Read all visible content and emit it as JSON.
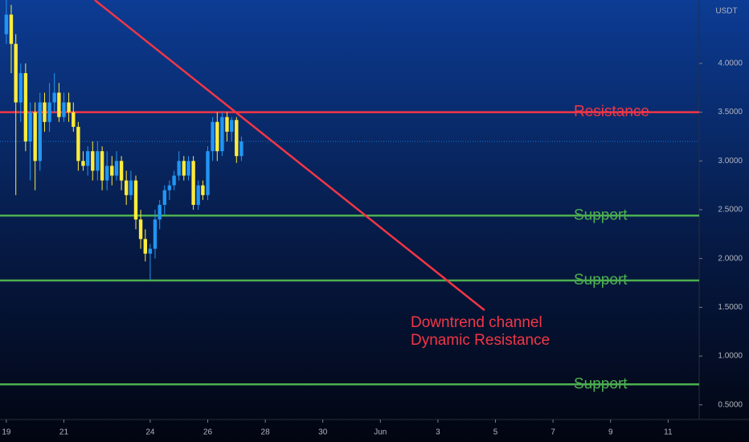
{
  "chart_data": {
    "type": "candlestick",
    "unit": "USDT",
    "x": [
      19,
      19.17,
      19.33,
      19.5,
      19.67,
      19.83,
      20,
      20.17,
      20.33,
      20.5,
      20.67,
      20.83,
      21,
      21.17,
      21.33,
      21.5,
      21.67,
      21.83,
      22,
      22.17,
      22.33,
      22.5,
      22.67,
      22.83,
      23,
      23.17,
      23.33,
      23.5,
      23.67,
      23.83,
      24,
      24.17,
      24.33,
      24.5,
      24.67,
      24.83,
      25,
      25.17,
      25.33,
      25.5,
      25.67,
      25.83,
      26,
      26.17,
      26.33,
      26.5,
      26.67,
      26.83,
      27,
      27.17
    ],
    "open": [
      4.3,
      4.5,
      4.2,
      3.6,
      3.9,
      3.2,
      3.5,
      3.0,
      3.6,
      3.4,
      3.6,
      3.7,
      3.45,
      3.6,
      3.5,
      3.35,
      3.0,
      2.95,
      3.1,
      2.9,
      3.1,
      2.8,
      2.95,
      2.85,
      3.0,
      2.8,
      2.65,
      2.8,
      2.4,
      2.2,
      2.05,
      2.1,
      2.4,
      2.55,
      2.7,
      2.75,
      2.85,
      3.0,
      2.85,
      3.0,
      2.55,
      2.75,
      2.65,
      3.1,
      3.4,
      3.1,
      3.45,
      3.3,
      3.42,
      3.05
    ],
    "high": [
      4.65,
      4.6,
      4.3,
      4.0,
      4.0,
      3.6,
      3.6,
      3.7,
      3.7,
      3.8,
      3.9,
      3.8,
      3.7,
      3.7,
      3.6,
      3.4,
      3.1,
      3.15,
      3.2,
      3.2,
      3.15,
      3.1,
      3.05,
      3.1,
      3.05,
      2.9,
      2.9,
      2.85,
      2.5,
      2.3,
      2.15,
      2.5,
      2.6,
      2.75,
      2.8,
      2.9,
      3.1,
      3.05,
      3.05,
      3.05,
      2.8,
      2.8,
      3.15,
      3.45,
      3.5,
      3.5,
      3.5,
      3.45,
      3.45,
      3.25
    ],
    "low": [
      4.2,
      3.9,
      2.65,
      3.4,
      3.1,
      2.8,
      2.7,
      2.9,
      3.3,
      3.3,
      3.5,
      3.4,
      3.4,
      3.4,
      3.3,
      2.9,
      2.9,
      2.85,
      2.8,
      2.8,
      2.7,
      2.7,
      2.75,
      2.8,
      2.7,
      2.55,
      2.6,
      2.3,
      2.1,
      1.97,
      1.78,
      2.0,
      2.3,
      2.45,
      2.6,
      2.7,
      2.8,
      2.8,
      2.8,
      2.5,
      2.5,
      2.6,
      2.6,
      3.0,
      3.0,
      3.05,
      3.2,
      3.2,
      2.98,
      3.0
    ],
    "close": [
      4.5,
      4.2,
      3.6,
      3.9,
      3.2,
      3.5,
      3.0,
      3.6,
      3.4,
      3.6,
      3.7,
      3.45,
      3.6,
      3.5,
      3.35,
      3.0,
      2.95,
      3.1,
      2.9,
      3.1,
      2.8,
      2.95,
      2.85,
      3.0,
      2.8,
      2.65,
      2.8,
      2.4,
      2.2,
      2.05,
      2.1,
      2.4,
      2.55,
      2.7,
      2.75,
      2.85,
      3.0,
      2.85,
      3.0,
      2.55,
      2.75,
      2.65,
      3.1,
      3.4,
      3.1,
      3.45,
      3.3,
      3.42,
      3.05,
      3.2
    ],
    "up_color": "#2196f3",
    "down_color": "#ffeb3b",
    "ylim": [
      0.35,
      4.65
    ],
    "yticks": [
      {
        "value": 0.5,
        "label": "0.5000"
      },
      {
        "value": 1,
        "label": "1.0000"
      },
      {
        "value": 1.5,
        "label": "1.5000"
      },
      {
        "value": 2,
        "label": "2.0000"
      },
      {
        "value": 2.5,
        "label": "2.5000"
      },
      {
        "value": 3,
        "label": "3.0000"
      },
      {
        "value": 3.5,
        "label": "3.5000"
      },
      {
        "value": 4,
        "label": "4.0000"
      }
    ],
    "xlim": [
      18.78,
      43.08
    ],
    "xticks": [
      19,
      21,
      24,
      26,
      28,
      30,
      {
        "value": 32,
        "label": "Jun"
      },
      {
        "value": 34,
        "label": "3"
      },
      {
        "value": 36,
        "label": "5"
      },
      {
        "value": 38,
        "label": "7"
      },
      {
        "value": 40,
        "label": "9"
      },
      {
        "value": 42,
        "label": "11"
      }
    ],
    "levels": [
      {
        "label": "Resistance",
        "value": 3.5,
        "color": "#f23645"
      },
      {
        "label": "Support",
        "value": 2.44,
        "color": "#4caf50"
      },
      {
        "label": "Support",
        "value": 1.775,
        "color": "#4caf50"
      },
      {
        "label": "Support",
        "value": 0.71,
        "color": "#4caf50"
      }
    ],
    "trendline": {
      "x": [
        22.07,
        35.62
      ],
      "y": [
        4.65,
        1.47
      ],
      "color": "#f23645",
      "labels": [
        "Downtrend channel",
        "Dynamic Resistance"
      ]
    }
  }
}
